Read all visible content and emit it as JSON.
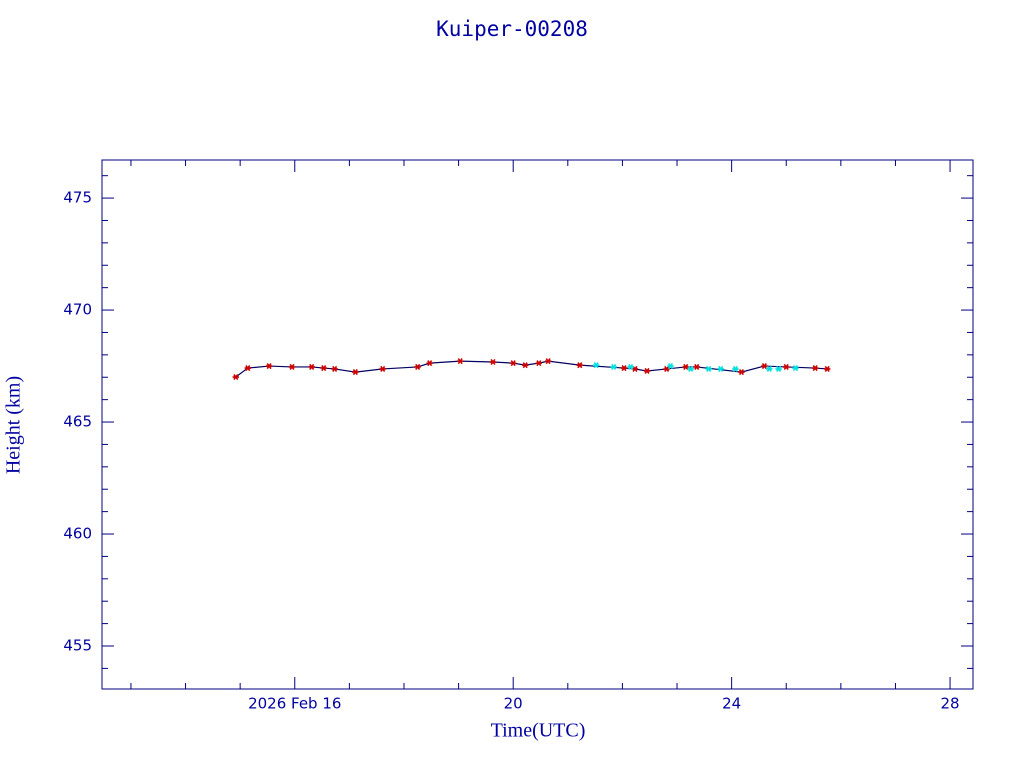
{
  "chart_data": {
    "type": "scatter",
    "title": "Kuiper-00208",
    "xlabel": "Time(UTC)",
    "ylabel": "Height (km)",
    "xlim": [
      12.47,
      28.42
    ],
    "ylim": [
      453.08,
      476.7
    ],
    "xticks": [
      {
        "value": 16,
        "label": "2026 Feb 16"
      },
      20,
      24,
      28
    ],
    "yticks": [
      455,
      460,
      465,
      470,
      475
    ],
    "xminorticks": [
      13,
      14,
      15,
      17,
      18,
      19,
      21,
      22,
      23,
      25,
      26,
      27
    ],
    "yminorticks": [
      454,
      456,
      457,
      458,
      459,
      461,
      462,
      463,
      464,
      466,
      467,
      468,
      469,
      471,
      472,
      473,
      474,
      476
    ],
    "axis_color": "#000080",
    "series": [
      {
        "color": "#cc0000",
        "line_color": "#000060",
        "x": [
          14.92,
          15.14,
          15.53,
          15.95,
          16.31,
          16.53,
          16.73,
          17.11,
          17.61,
          18.25,
          18.47,
          19.03,
          19.63,
          20.0,
          20.22,
          20.47,
          20.64,
          21.22,
          22.03,
          22.23,
          22.45,
          22.81,
          23.16,
          23.36,
          24.18,
          24.6,
          25.0,
          25.53,
          25.75
        ],
        "values": [
          467.01,
          467.41,
          467.5,
          467.46,
          467.46,
          467.41,
          467.37,
          467.23,
          467.37,
          467.46,
          467.63,
          467.72,
          467.68,
          467.63,
          467.54,
          467.63,
          467.72,
          467.54,
          467.41,
          467.37,
          467.28,
          467.37,
          467.46,
          467.46,
          467.23,
          467.5,
          467.46,
          467.41,
          467.37
        ]
      },
      {
        "color": "#00e0e0",
        "x": [
          21.52,
          21.84,
          22.15,
          22.88,
          23.25,
          23.58,
          23.8,
          24.07,
          24.69,
          24.86,
          25.17
        ],
        "values": [
          467.54,
          467.46,
          467.46,
          467.5,
          467.37,
          467.37,
          467.37,
          467.37,
          467.37,
          467.37,
          467.41
        ]
      }
    ]
  }
}
